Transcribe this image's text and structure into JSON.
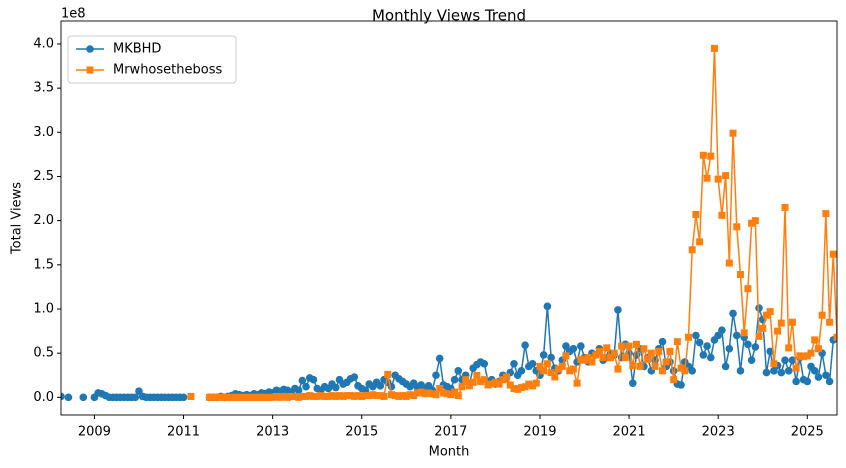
{
  "chart_data": {
    "type": "line",
    "title": "Monthly Views Trend",
    "xlabel": "Month",
    "ylabel": "Total Views",
    "y_offset_text": "1e8",
    "x": [
      "2008-04",
      "2008-05",
      "2008-06",
      "2008-07",
      "2008-08",
      "2008-09",
      "2008-10",
      "2008-11",
      "2008-12",
      "2009-01",
      "2009-02",
      "2009-03",
      "2009-04",
      "2009-05",
      "2009-06",
      "2009-07",
      "2009-08",
      "2009-09",
      "2009-10",
      "2009-11",
      "2009-12",
      "2010-01",
      "2010-02",
      "2010-03",
      "2010-04",
      "2010-05",
      "2010-06",
      "2010-07",
      "2010-08",
      "2010-09",
      "2010-10",
      "2010-11",
      "2010-12",
      "2011-01",
      "2011-02",
      "2011-03",
      "2011-04",
      "2011-05",
      "2011-06",
      "2011-07",
      "2011-08",
      "2011-09",
      "2011-10",
      "2011-11",
      "2011-12",
      "2012-01",
      "2012-02",
      "2012-03",
      "2012-04",
      "2012-05",
      "2012-06",
      "2012-07",
      "2012-08",
      "2012-09",
      "2012-10",
      "2012-11",
      "2012-12",
      "2013-01",
      "2013-02",
      "2013-03",
      "2013-04",
      "2013-05",
      "2013-06",
      "2013-07",
      "2013-08",
      "2013-09",
      "2013-10",
      "2013-11",
      "2013-12",
      "2014-01",
      "2014-02",
      "2014-03",
      "2014-04",
      "2014-05",
      "2014-06",
      "2014-07",
      "2014-08",
      "2014-09",
      "2014-10",
      "2014-11",
      "2014-12",
      "2015-01",
      "2015-02",
      "2015-03",
      "2015-04",
      "2015-05",
      "2015-06",
      "2015-07",
      "2015-08",
      "2015-09",
      "2015-10",
      "2015-11",
      "2015-12",
      "2016-01",
      "2016-02",
      "2016-03",
      "2016-04",
      "2016-05",
      "2016-06",
      "2016-07",
      "2016-08",
      "2016-09",
      "2016-10",
      "2016-11",
      "2016-12",
      "2017-01",
      "2017-02",
      "2017-03",
      "2017-04",
      "2017-05",
      "2017-06",
      "2017-07",
      "2017-08",
      "2017-09",
      "2017-10",
      "2017-11",
      "2017-12",
      "2018-01",
      "2018-02",
      "2018-03",
      "2018-04",
      "2018-05",
      "2018-06",
      "2018-07",
      "2018-08",
      "2018-09",
      "2018-10",
      "2018-11",
      "2018-12",
      "2019-01",
      "2019-02",
      "2019-03",
      "2019-04",
      "2019-05",
      "2019-06",
      "2019-07",
      "2019-08",
      "2019-09",
      "2019-10",
      "2019-11",
      "2019-12",
      "2020-01",
      "2020-02",
      "2020-03",
      "2020-04",
      "2020-05",
      "2020-06",
      "2020-07",
      "2020-08",
      "2020-09",
      "2020-10",
      "2020-11",
      "2020-12",
      "2021-01",
      "2021-02",
      "2021-03",
      "2021-04",
      "2021-05",
      "2021-06",
      "2021-07",
      "2021-08",
      "2021-09",
      "2021-10",
      "2021-11",
      "2021-12",
      "2022-01",
      "2022-02",
      "2022-03",
      "2022-04",
      "2022-05",
      "2022-06",
      "2022-07",
      "2022-08",
      "2022-09",
      "2022-10",
      "2022-11",
      "2022-12",
      "2023-01",
      "2023-02",
      "2023-03",
      "2023-04",
      "2023-05",
      "2023-06",
      "2023-07",
      "2023-08",
      "2023-09",
      "2023-10",
      "2023-11",
      "2023-12",
      "2024-01",
      "2024-02",
      "2024-03",
      "2024-04",
      "2024-05",
      "2024-06",
      "2024-07",
      "2024-08",
      "2024-09",
      "2024-10",
      "2024-11",
      "2024-12",
      "2025-01",
      "2025-02",
      "2025-03",
      "2025-04",
      "2025-05",
      "2025-06",
      "2025-07",
      "2025-08",
      "2025-09"
    ],
    "series": [
      {
        "name": "MKBHD",
        "color": "#1f77b4",
        "marker": "circle",
        "values": [
          0.01,
          null,
          0.0,
          null,
          null,
          null,
          0.0,
          null,
          null,
          0.0,
          0.05,
          0.04,
          0.02,
          0.0,
          0.0,
          0.0,
          0.0,
          0.0,
          0.0,
          0.0,
          0.0,
          0.07,
          0.01,
          0.0,
          0.0,
          0.0,
          0.0,
          0.0,
          0.0,
          0.0,
          0.0,
          0.0,
          0.0,
          0.0,
          null,
          null,
          null,
          null,
          null,
          null,
          0.0,
          0.0,
          0.0,
          0.01,
          0.0,
          0.01,
          0.02,
          0.04,
          0.03,
          0.02,
          0.03,
          0.02,
          0.04,
          0.03,
          0.05,
          0.04,
          0.06,
          0.05,
          0.08,
          0.07,
          0.09,
          0.08,
          0.06,
          0.1,
          0.08,
          0.19,
          0.12,
          0.22,
          0.2,
          0.1,
          0.08,
          0.12,
          0.1,
          0.15,
          0.11,
          0.2,
          0.15,
          0.17,
          0.21,
          0.23,
          0.13,
          0.1,
          0.08,
          0.15,
          0.12,
          0.17,
          0.13,
          0.2,
          0.17,
          0.12,
          0.25,
          0.21,
          0.18,
          0.15,
          0.12,
          0.16,
          0.11,
          0.14,
          0.1,
          0.13,
          0.08,
          0.25,
          0.44,
          0.14,
          0.12,
          0.1,
          0.2,
          0.3,
          0.2,
          0.25,
          0.15,
          0.33,
          0.37,
          0.4,
          0.38,
          0.18,
          0.2,
          0.15,
          0.18,
          0.25,
          0.22,
          0.28,
          0.38,
          0.25,
          0.3,
          0.59,
          0.35,
          0.38,
          0.3,
          0.25,
          0.48,
          1.03,
          0.45,
          0.33,
          0.3,
          0.42,
          0.58,
          0.52,
          0.55,
          0.4,
          0.58,
          0.45,
          0.4,
          0.5,
          0.48,
          0.55,
          0.42,
          0.45,
          0.5,
          0.48,
          0.99,
          0.45,
          0.6,
          0.5,
          0.16,
          0.48,
          0.55,
          0.35,
          0.45,
          0.3,
          0.42,
          0.55,
          0.63,
          0.35,
          0.4,
          0.3,
          0.15,
          0.14,
          0.4,
          0.35,
          0.3,
          0.7,
          0.62,
          0.48,
          0.58,
          0.45,
          0.65,
          0.7,
          0.76,
          0.35,
          0.55,
          0.95,
          0.7,
          0.3,
          0.68,
          0.6,
          0.42,
          0.57,
          1.01,
          0.88,
          0.28,
          0.52,
          0.3,
          0.36,
          0.28,
          0.42,
          0.3,
          0.42,
          0.18,
          0.45,
          0.2,
          0.18,
          0.35,
          0.3,
          0.23,
          0.5,
          0.25,
          0.18,
          0.65,
          0.68
        ]
      },
      {
        "name": "Mrwhosetheboss",
        "color": "#ff7f0e",
        "marker": "square",
        "values": [
          null,
          null,
          null,
          null,
          null,
          null,
          null,
          null,
          null,
          null,
          null,
          null,
          null,
          null,
          null,
          null,
          null,
          null,
          null,
          null,
          null,
          null,
          null,
          null,
          null,
          null,
          null,
          null,
          null,
          null,
          null,
          null,
          null,
          null,
          null,
          0.01,
          null,
          null,
          null,
          null,
          0.0,
          0.0,
          0.0,
          0.0,
          0.0,
          0.0,
          0.0,
          0.0,
          0.0,
          0.0,
          0.0,
          0.0,
          0.0,
          0.0,
          0.0,
          0.0,
          0.0,
          0.0,
          0.01,
          0.0,
          0.01,
          0.0,
          0.01,
          0.01,
          0.0,
          0.01,
          0.01,
          0.02,
          0.01,
          0.01,
          0.02,
          0.01,
          0.01,
          0.02,
          0.01,
          0.02,
          0.01,
          0.02,
          0.02,
          0.01,
          0.02,
          0.01,
          0.02,
          0.02,
          0.03,
          0.02,
          0.02,
          0.01,
          0.26,
          0.03,
          0.02,
          0.01,
          0.02,
          0.01,
          0.03,
          0.02,
          0.05,
          0.06,
          0.04,
          0.05,
          0.04,
          0.03,
          0.1,
          0.05,
          0.04,
          0.03,
          0.06,
          0.02,
          0.12,
          0.2,
          0.13,
          0.17,
          0.25,
          0.18,
          0.2,
          0.14,
          0.15,
          0.17,
          0.15,
          0.2,
          0.23,
          0.14,
          0.1,
          0.09,
          0.11,
          0.12,
          0.15,
          0.13,
          0.16,
          0.35,
          0.3,
          0.38,
          0.28,
          0.23,
          0.32,
          0.35,
          0.47,
          0.3,
          0.32,
          0.16,
          0.43,
          0.42,
          0.45,
          0.4,
          0.48,
          0.52,
          0.45,
          0.56,
          0.45,
          0.5,
          0.32,
          0.58,
          0.45,
          0.58,
          0.36,
          0.6,
          0.35,
          0.55,
          0.43,
          0.5,
          0.35,
          0.52,
          0.3,
          0.4,
          0.52,
          0.2,
          0.63,
          0.33,
          0.3,
          0.68,
          1.67,
          2.07,
          1.76,
          2.74,
          2.48,
          2.73,
          3.95,
          2.47,
          2.06,
          2.51,
          1.52,
          2.99,
          1.93,
          1.39,
          0.73,
          1.23,
          1.97,
          2.0,
          0.69,
          0.78,
          0.93,
          0.97,
          0.38,
          0.75,
          0.84,
          2.15,
          0.56,
          0.85,
          0.33,
          0.47,
          0.46,
          0.47,
          0.5,
          0.65,
          0.55,
          0.93,
          2.08,
          0.85,
          1.62,
          0.68
        ]
      }
    ],
    "xlim": [
      "2008-04",
      "2025-09"
    ],
    "xticks": [
      {
        "value": "2009-01",
        "label": "2009"
      },
      {
        "value": "2011-01",
        "label": "2011"
      },
      {
        "value": "2013-01",
        "label": "2013"
      },
      {
        "value": "2015-01",
        "label": "2015"
      },
      {
        "value": "2017-01",
        "label": "2017"
      },
      {
        "value": "2019-01",
        "label": "2019"
      },
      {
        "value": "2021-01",
        "label": "2021"
      },
      {
        "value": "2023-01",
        "label": "2023"
      },
      {
        "value": "2025-01",
        "label": "2025"
      }
    ],
    "ylim": [
      -0.2,
      4.26
    ],
    "yticks": [
      {
        "value": 0,
        "label": "0.0"
      },
      {
        "value": 0.5,
        "label": "0.5"
      },
      {
        "value": 1,
        "label": "1.0"
      },
      {
        "value": 1.5,
        "label": "1.5"
      },
      {
        "value": 2,
        "label": "2.0"
      },
      {
        "value": 2.5,
        "label": "2.5"
      },
      {
        "value": 3,
        "label": "3.0"
      },
      {
        "value": 3.5,
        "label": "3.5"
      },
      {
        "value": 4,
        "label": "4.0"
      }
    ],
    "grid": false,
    "legend": "upper left"
  }
}
